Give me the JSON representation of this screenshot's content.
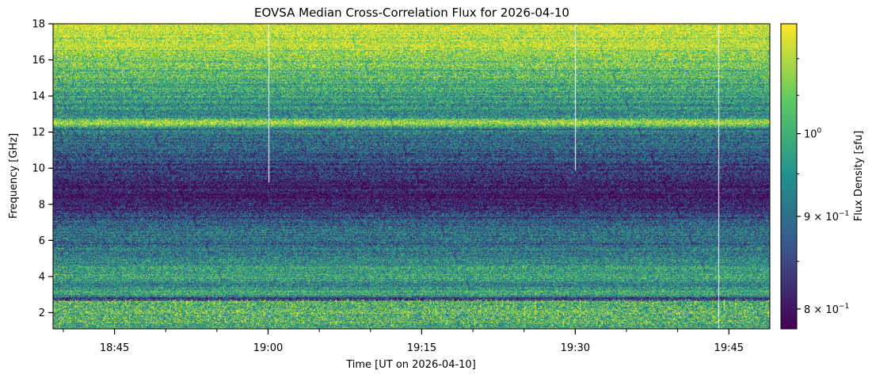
{
  "chart_data": {
    "type": "heatmap",
    "title": "EOVSA Median Cross-Correlation Flux for 2026-04-10",
    "xlabel": "Time [UT on 2026-04-10]",
    "ylabel": "Frequency [GHz]",
    "colorbar_label": "Flux Density [sfu]",
    "colormap": "viridis",
    "colormap_stops": [
      "#440154",
      "#3b528b",
      "#21908d",
      "#5dc963",
      "#fde725"
    ],
    "x_range": [
      "18:39",
      "19:49"
    ],
    "x_ticks": [
      "18:45",
      "19:00",
      "19:15",
      "19:30",
      "19:45"
    ],
    "y_range": [
      1.1,
      18.0
    ],
    "y_ticks": [
      "2",
      "4",
      "6",
      "8",
      "10",
      "12",
      "14",
      "16",
      "18"
    ],
    "color_scale": "log",
    "color_range": [
      0.78,
      1.15
    ],
    "colorbar_ticks": [
      {
        "value": 1.0,
        "label": "10",
        "exp": "0"
      },
      {
        "value": 0.9,
        "label": "9 × 10",
        "exp": "−1"
      },
      {
        "value": 0.8,
        "label": "8 × 10",
        "exp": "−1"
      }
    ],
    "grid": false,
    "bright_bands_ghz": [
      [
        12.35,
        12.75
      ],
      [
        7.05,
        7.2
      ],
      [
        3.6,
        3.9
      ],
      [
        1.2,
        2.7
      ]
    ],
    "data_gaps_ut": [
      "19:00",
      "19:30",
      "19:44"
    ],
    "spectral_profile": [
      {
        "f": 1.2,
        "level": 0.65
      },
      {
        "f": 2.6,
        "level": 0.7
      },
      {
        "f": 2.7,
        "level": 0.1
      },
      {
        "f": 3.0,
        "level": 0.62
      },
      {
        "f": 3.5,
        "level": 0.45
      },
      {
        "f": 4.0,
        "level": 0.6
      },
      {
        "f": 5.0,
        "level": 0.45
      },
      {
        "f": 6.0,
        "level": 0.35
      },
      {
        "f": 6.5,
        "level": 0.4
      },
      {
        "f": 7.0,
        "level": 0.3
      },
      {
        "f": 7.5,
        "level": 0.2
      },
      {
        "f": 8.5,
        "level": 0.05
      },
      {
        "f": 9.5,
        "level": 0.15
      },
      {
        "f": 10.5,
        "level": 0.25
      },
      {
        "f": 11.5,
        "level": 0.35
      },
      {
        "f": 12.2,
        "level": 0.4
      },
      {
        "f": 12.5,
        "level": 0.95
      },
      {
        "f": 12.8,
        "level": 0.5
      },
      {
        "f": 13.5,
        "level": 0.5
      },
      {
        "f": 14.5,
        "level": 0.6
      },
      {
        "f": 15.5,
        "level": 0.72
      },
      {
        "f": 16.5,
        "level": 0.85
      },
      {
        "f": 17.3,
        "level": 0.93
      },
      {
        "f": 18.0,
        "level": 0.97
      }
    ]
  }
}
